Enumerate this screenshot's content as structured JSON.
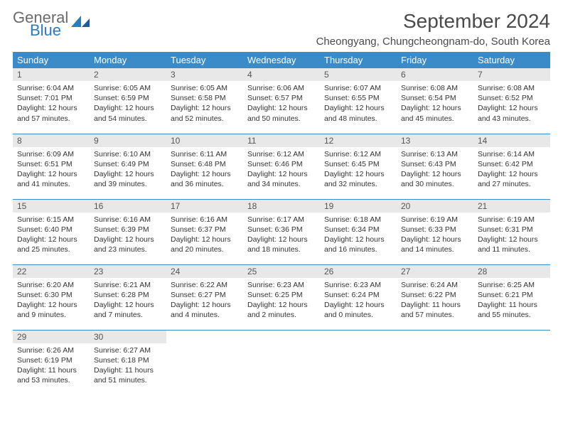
{
  "logo": {
    "part1": "General",
    "part2": "Blue"
  },
  "title": "September 2024",
  "location": "Cheongyang, Chungcheongnam-do, South Korea",
  "colors": {
    "header_bg": "#3b8bc9",
    "header_text": "#ffffff",
    "daynum_bg": "#e8e8e8",
    "border": "#3b8bc9",
    "logo_gray": "#6a6a6a",
    "logo_blue": "#2b7bbf"
  },
  "weekdays": [
    "Sunday",
    "Monday",
    "Tuesday",
    "Wednesday",
    "Thursday",
    "Friday",
    "Saturday"
  ],
  "days": [
    {
      "n": 1,
      "sr": "6:04 AM",
      "ss": "7:01 PM",
      "dl": "12 hours and 57 minutes."
    },
    {
      "n": 2,
      "sr": "6:05 AM",
      "ss": "6:59 PM",
      "dl": "12 hours and 54 minutes."
    },
    {
      "n": 3,
      "sr": "6:05 AM",
      "ss": "6:58 PM",
      "dl": "12 hours and 52 minutes."
    },
    {
      "n": 4,
      "sr": "6:06 AM",
      "ss": "6:57 PM",
      "dl": "12 hours and 50 minutes."
    },
    {
      "n": 5,
      "sr": "6:07 AM",
      "ss": "6:55 PM",
      "dl": "12 hours and 48 minutes."
    },
    {
      "n": 6,
      "sr": "6:08 AM",
      "ss": "6:54 PM",
      "dl": "12 hours and 45 minutes."
    },
    {
      "n": 7,
      "sr": "6:08 AM",
      "ss": "6:52 PM",
      "dl": "12 hours and 43 minutes."
    },
    {
      "n": 8,
      "sr": "6:09 AM",
      "ss": "6:51 PM",
      "dl": "12 hours and 41 minutes."
    },
    {
      "n": 9,
      "sr": "6:10 AM",
      "ss": "6:49 PM",
      "dl": "12 hours and 39 minutes."
    },
    {
      "n": 10,
      "sr": "6:11 AM",
      "ss": "6:48 PM",
      "dl": "12 hours and 36 minutes."
    },
    {
      "n": 11,
      "sr": "6:12 AM",
      "ss": "6:46 PM",
      "dl": "12 hours and 34 minutes."
    },
    {
      "n": 12,
      "sr": "6:12 AM",
      "ss": "6:45 PM",
      "dl": "12 hours and 32 minutes."
    },
    {
      "n": 13,
      "sr": "6:13 AM",
      "ss": "6:43 PM",
      "dl": "12 hours and 30 minutes."
    },
    {
      "n": 14,
      "sr": "6:14 AM",
      "ss": "6:42 PM",
      "dl": "12 hours and 27 minutes."
    },
    {
      "n": 15,
      "sr": "6:15 AM",
      "ss": "6:40 PM",
      "dl": "12 hours and 25 minutes."
    },
    {
      "n": 16,
      "sr": "6:16 AM",
      "ss": "6:39 PM",
      "dl": "12 hours and 23 minutes."
    },
    {
      "n": 17,
      "sr": "6:16 AM",
      "ss": "6:37 PM",
      "dl": "12 hours and 20 minutes."
    },
    {
      "n": 18,
      "sr": "6:17 AM",
      "ss": "6:36 PM",
      "dl": "12 hours and 18 minutes."
    },
    {
      "n": 19,
      "sr": "6:18 AM",
      "ss": "6:34 PM",
      "dl": "12 hours and 16 minutes."
    },
    {
      "n": 20,
      "sr": "6:19 AM",
      "ss": "6:33 PM",
      "dl": "12 hours and 14 minutes."
    },
    {
      "n": 21,
      "sr": "6:19 AM",
      "ss": "6:31 PM",
      "dl": "12 hours and 11 minutes."
    },
    {
      "n": 22,
      "sr": "6:20 AM",
      "ss": "6:30 PM",
      "dl": "12 hours and 9 minutes."
    },
    {
      "n": 23,
      "sr": "6:21 AM",
      "ss": "6:28 PM",
      "dl": "12 hours and 7 minutes."
    },
    {
      "n": 24,
      "sr": "6:22 AM",
      "ss": "6:27 PM",
      "dl": "12 hours and 4 minutes."
    },
    {
      "n": 25,
      "sr": "6:23 AM",
      "ss": "6:25 PM",
      "dl": "12 hours and 2 minutes."
    },
    {
      "n": 26,
      "sr": "6:23 AM",
      "ss": "6:24 PM",
      "dl": "12 hours and 0 minutes."
    },
    {
      "n": 27,
      "sr": "6:24 AM",
      "ss": "6:22 PM",
      "dl": "11 hours and 57 minutes."
    },
    {
      "n": 28,
      "sr": "6:25 AM",
      "ss": "6:21 PM",
      "dl": "11 hours and 55 minutes."
    },
    {
      "n": 29,
      "sr": "6:26 AM",
      "ss": "6:19 PM",
      "dl": "11 hours and 53 minutes."
    },
    {
      "n": 30,
      "sr": "6:27 AM",
      "ss": "6:18 PM",
      "dl": "11 hours and 51 minutes."
    }
  ],
  "labels": {
    "sunrise": "Sunrise:",
    "sunset": "Sunset:",
    "daylight": "Daylight:"
  },
  "layout": {
    "start_weekday": 0,
    "total_days": 30,
    "cols": 7
  }
}
